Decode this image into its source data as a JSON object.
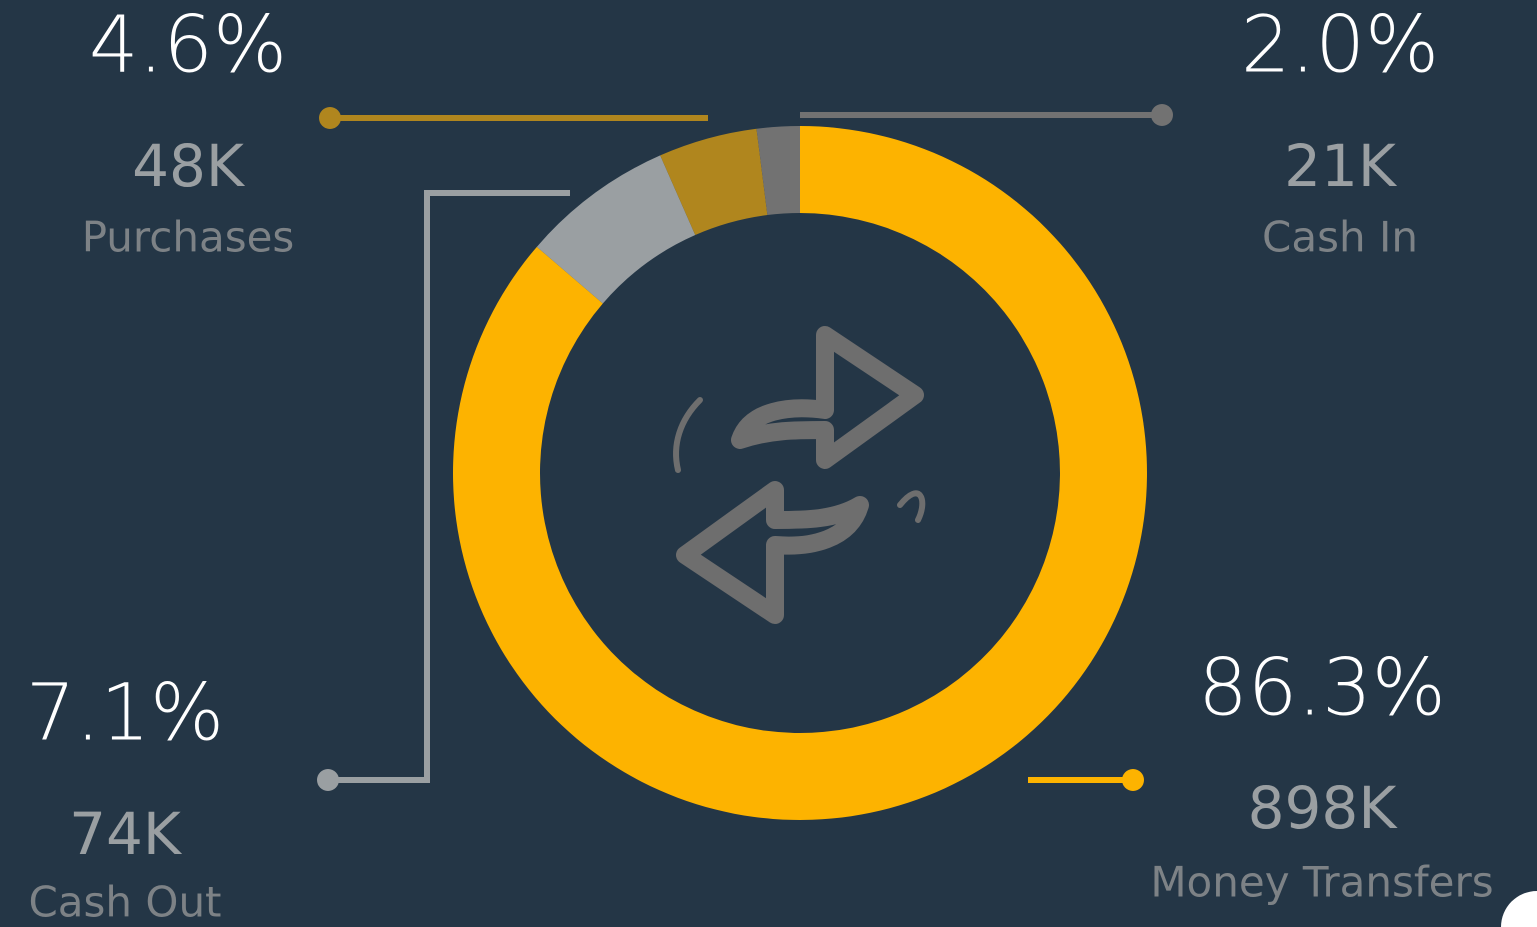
{
  "chart_data": {
    "type": "pie",
    "categories": [
      "Money Transfers",
      "Cash Out",
      "Purchases",
      "Cash In"
    ],
    "values": [
      86.3,
      7.1,
      4.6,
      2.0
    ],
    "value_labels": [
      "86.3%",
      "7.1%",
      "4.6%",
      "2.0%"
    ],
    "counts": [
      898000,
      74000,
      48000,
      21000
    ],
    "count_labels": [
      "898K",
      "74K",
      "48K",
      "21K"
    ],
    "colors": [
      "#fdb300",
      "#9a9fa2",
      "#b0861e",
      "#727272"
    ]
  }
}
